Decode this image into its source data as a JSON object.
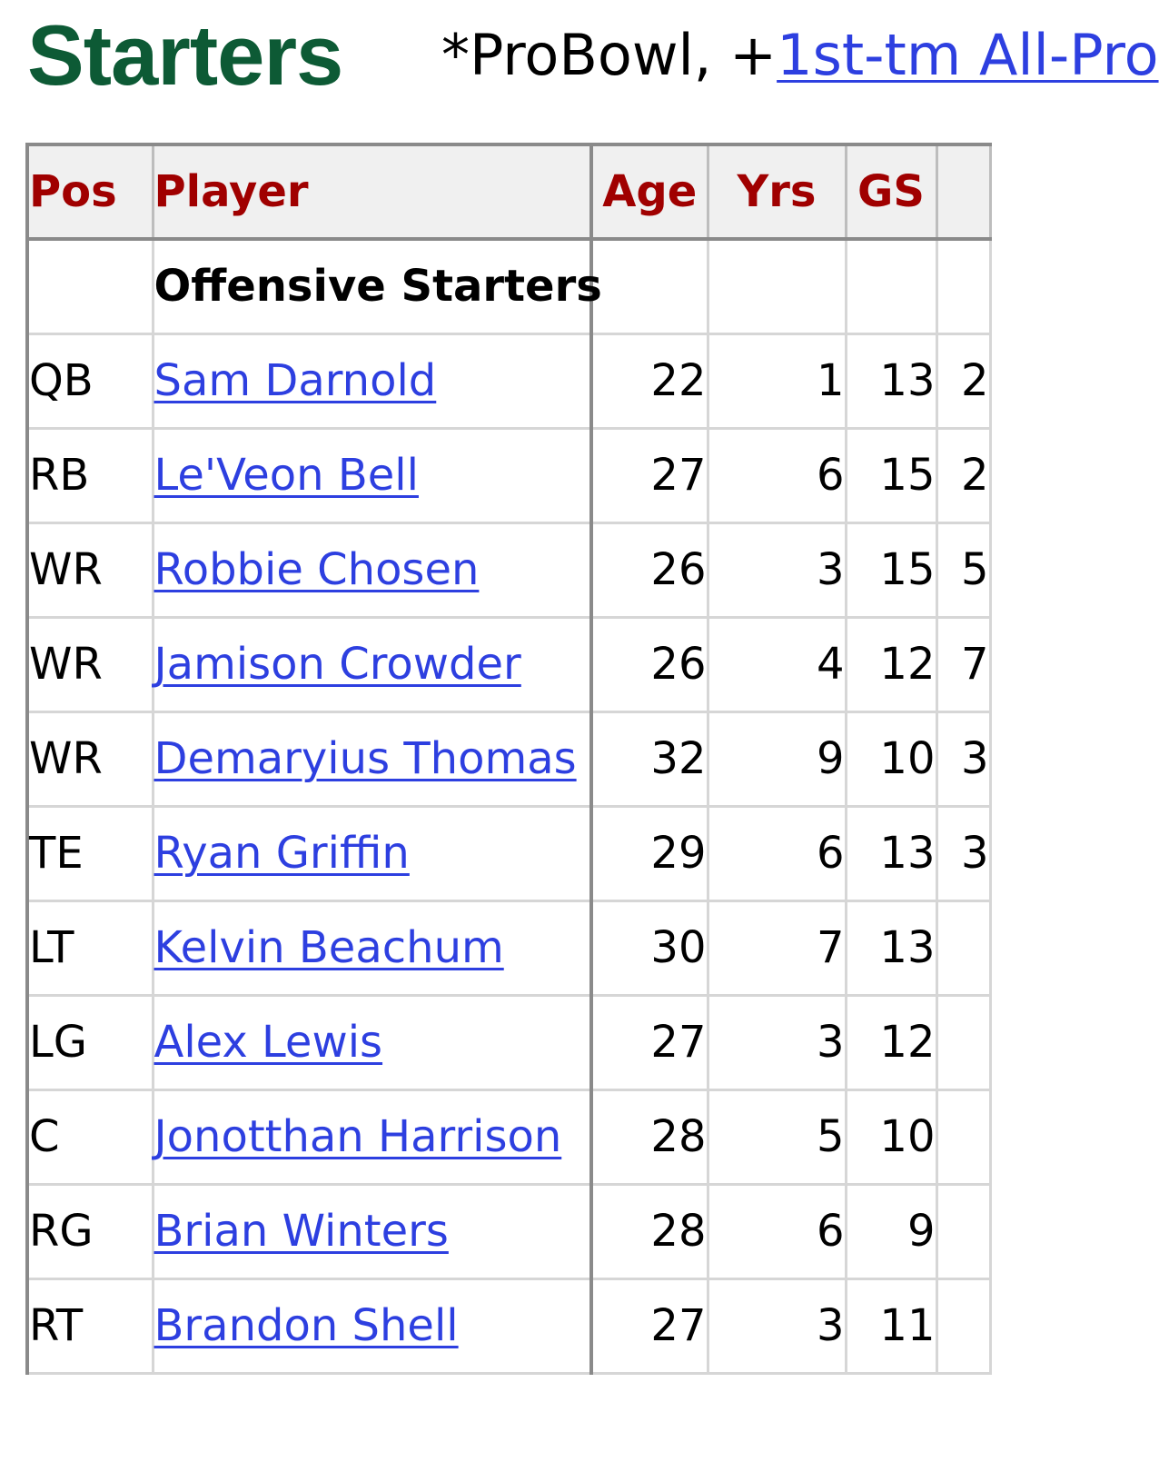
{
  "heading": {
    "title": "Starters",
    "legend_prefix": "*ProBowl, +",
    "legend_link": "1st-tm All-Pro"
  },
  "table": {
    "columns": {
      "pos": "Pos",
      "player": "Player",
      "age": "Age",
      "yrs": "Yrs",
      "gs": "GS",
      "extra": ""
    },
    "group_label": "Offensive Starters",
    "rows": [
      {
        "pos": "QB",
        "player": "Sam Darnold",
        "age": "22",
        "yrs": "1",
        "gs": "13",
        "extra": "2"
      },
      {
        "pos": "RB",
        "player": "Le'Veon Bell",
        "age": "27",
        "yrs": "6",
        "gs": "15",
        "extra": "2"
      },
      {
        "pos": "WR",
        "player": "Robbie Chosen",
        "age": "26",
        "yrs": "3",
        "gs": "15",
        "extra": "5"
      },
      {
        "pos": "WR",
        "player": "Jamison Crowder",
        "age": "26",
        "yrs": "4",
        "gs": "12",
        "extra": "7"
      },
      {
        "pos": "WR",
        "player": "Demaryius Thomas",
        "age": "32",
        "yrs": "9",
        "gs": "10",
        "extra": "3"
      },
      {
        "pos": "TE",
        "player": "Ryan Griffin",
        "age": "29",
        "yrs": "6",
        "gs": "13",
        "extra": "3"
      },
      {
        "pos": "LT",
        "player": "Kelvin Beachum",
        "age": "30",
        "yrs": "7",
        "gs": "13",
        "extra": ""
      },
      {
        "pos": "LG",
        "player": "Alex Lewis",
        "age": "27",
        "yrs": "3",
        "gs": "12",
        "extra": ""
      },
      {
        "pos": "C",
        "player": "Jonotthan Harrison",
        "age": "28",
        "yrs": "5",
        "gs": "10",
        "extra": ""
      },
      {
        "pos": "RG",
        "player": "Brian Winters",
        "age": "28",
        "yrs": "6",
        "gs": "9",
        "extra": ""
      },
      {
        "pos": "RT",
        "player": "Brandon Shell",
        "age": "27",
        "yrs": "3",
        "gs": "11",
        "extra": ""
      }
    ]
  }
}
